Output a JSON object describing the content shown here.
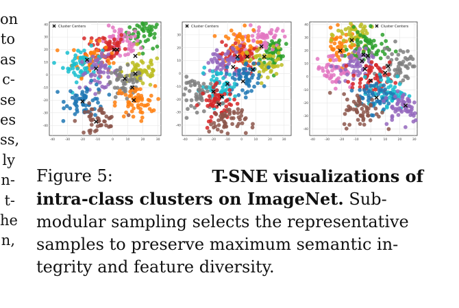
{
  "left_column_fragments": [
    "on",
    "to",
    "as",
    "c-",
    "se",
    "es",
    "ss,",
    "ly",
    "n-",
    "t-",
    "he",
    "n,"
  ],
  "figure": {
    "panels": [
      {
        "chart_data": {
          "type": "scatter",
          "legend": {
            "label": "Cluster Centers",
            "placement": "top-left"
          },
          "grid": true,
          "xlim": [
            -42,
            32
          ],
          "ylim": [
            -48,
            42
          ],
          "xticks": [
            "-40",
            "-30",
            "-20",
            "-10",
            "0",
            "10",
            "20",
            "30"
          ],
          "yticks": [
            "40",
            "30",
            "20",
            "10",
            "0",
            "-10",
            "-20",
            "-30",
            "-40"
          ],
          "clusters": [
            {
              "color": "#2ca02c",
              "center": [
                22,
                34
              ]
            },
            {
              "color": "#e377c2",
              "center": [
                5,
                25
              ]
            },
            {
              "color": "#d62728",
              "center": [
                -4,
                22
              ]
            },
            {
              "color": "#ff7f0e",
              "center": [
                -14,
                12
              ]
            },
            {
              "color": "#17becf",
              "center": [
                -20,
                8
              ]
            },
            {
              "color": "#9467bd",
              "center": [
                -9,
                2
              ]
            },
            {
              "color": "#bcbd22",
              "center": [
                19,
                3
              ]
            },
            {
              "color": "#7f7f7f",
              "center": [
                8,
                -8
              ]
            },
            {
              "color": "#1f77b4",
              "center": [
                -18,
                -20
              ]
            },
            {
              "color": "#8c564b",
              "center": [
                -10,
                -37
              ]
            },
            {
              "color": "#ff7f0e",
              "center": [
                15,
                -22
              ]
            }
          ],
          "cluster_centers": [
            [
              -17,
              12
            ],
            [
              -11,
              5
            ],
            [
              1,
              20
            ],
            [
              3,
              20
            ],
            [
              15,
              15
            ],
            [
              15,
              1
            ],
            [
              8,
              -3
            ],
            [
              13,
              -10
            ],
            [
              14,
              -20
            ],
            [
              -20,
              -21
            ],
            [
              -11,
              -37
            ]
          ]
        }
      },
      {
        "chart_data": {
          "type": "scatter",
          "legend": {
            "label": "Cluster Centers",
            "placement": "top-left"
          },
          "grid": true,
          "xlim": [
            -42,
            35
          ],
          "ylim": [
            -48,
            40
          ],
          "xticks": [
            "-40",
            "-30",
            "-20",
            "-10",
            "0",
            "10",
            "20",
            "30"
          ],
          "yticks": [
            "30",
            "20",
            "10",
            "0",
            "-10",
            "-20",
            "-30",
            "-40"
          ],
          "clusters": [
            {
              "color": "#2ca02c",
              "center": [
                24,
                17
              ]
            },
            {
              "color": "#e377c2",
              "center": [
                15,
                28
              ]
            },
            {
              "color": "#ff7f0e",
              "center": [
                -2,
                22
              ]
            },
            {
              "color": "#d62728",
              "center": [
                -3,
                12
              ]
            },
            {
              "color": "#bcbd22",
              "center": [
                17,
                7
              ]
            },
            {
              "color": "#9467bd",
              "center": [
                -12,
                8
              ]
            },
            {
              "color": "#1f77b4",
              "center": [
                2,
                -3
              ]
            },
            {
              "color": "#17becf",
              "center": [
                -16,
                -10
              ]
            },
            {
              "color": "#7f7f7f",
              "center": [
                -30,
                -16
              ]
            },
            {
              "color": "#d62728",
              "center": [
                -16,
                -23
              ]
            },
            {
              "color": "#8c564b",
              "center": [
                -10,
                -37
              ]
            }
          ],
          "cluster_centers": [
            [
              14,
              21
            ],
            [
              -3,
              13
            ],
            [
              4,
              13
            ],
            [
              -6,
              5
            ],
            [
              16,
              13
            ],
            [
              1,
              -6
            ],
            [
              8,
              3
            ],
            [
              -10,
              -8
            ],
            [
              -20,
              -14
            ],
            [
              -16,
              -24
            ],
            [
              -14,
              -18
            ]
          ]
        }
      },
      {
        "chart_data": {
          "type": "scatter",
          "legend": {
            "label": "Cluster Centers",
            "placement": "top-right"
          },
          "grid": true,
          "xlim": [
            -42,
            32
          ],
          "ylim": [
            -45,
            42
          ],
          "xticks": [
            "-40",
            "-30",
            "-20",
            "-10",
            "0",
            "10",
            "20",
            "30"
          ],
          "yticks": [
            "40",
            "30",
            "20",
            "10",
            "0",
            "-10",
            "-20",
            "-30",
            "-40"
          ],
          "clusters": [
            {
              "color": "#ff7f0e",
              "center": [
                -20,
                22
              ]
            },
            {
              "color": "#bcbd22",
              "center": [
                -10,
                32
              ]
            },
            {
              "color": "#2ca02c",
              "center": [
                -2,
                22
              ]
            },
            {
              "color": "#7f7f7f",
              "center": [
                20,
                10
              ]
            },
            {
              "color": "#e377c2",
              "center": [
                -25,
                6
              ]
            },
            {
              "color": "#9467bd",
              "center": [
                -12,
                8
              ]
            },
            {
              "color": "#d62728",
              "center": [
                0,
                -2
              ]
            },
            {
              "color": "#17becf",
              "center": [
                12,
                -12
              ]
            },
            {
              "color": "#1f77b4",
              "center": [
                4,
                -14
              ]
            },
            {
              "color": "#9467bd",
              "center": [
                22,
                -22
              ]
            },
            {
              "color": "#8c564b",
              "center": [
                -6,
                -26
              ]
            }
          ],
          "cluster_centers": [
            [
              -21,
              20
            ],
            [
              -13,
              28
            ],
            [
              -5,
              17
            ],
            [
              -6,
              12
            ],
            [
              -2,
              16
            ],
            [
              10,
              3
            ],
            [
              0,
              -3
            ],
            [
              4,
              -16
            ],
            [
              24,
              -22
            ],
            [
              -4,
              6
            ],
            [
              12,
              8
            ]
          ]
        }
      }
    ]
  },
  "caption": {
    "lead": "Figure 5:",
    "bold_part1": "T-SNE visualizations of",
    "bold_part2": "intra-class clusters on ImageNet.",
    "after_bold": "Sub-",
    "line3": "modular sampling selects the representative",
    "line4": "samples to preserve maximum semantic in-",
    "line5": "tegrity and feature diversity."
  }
}
